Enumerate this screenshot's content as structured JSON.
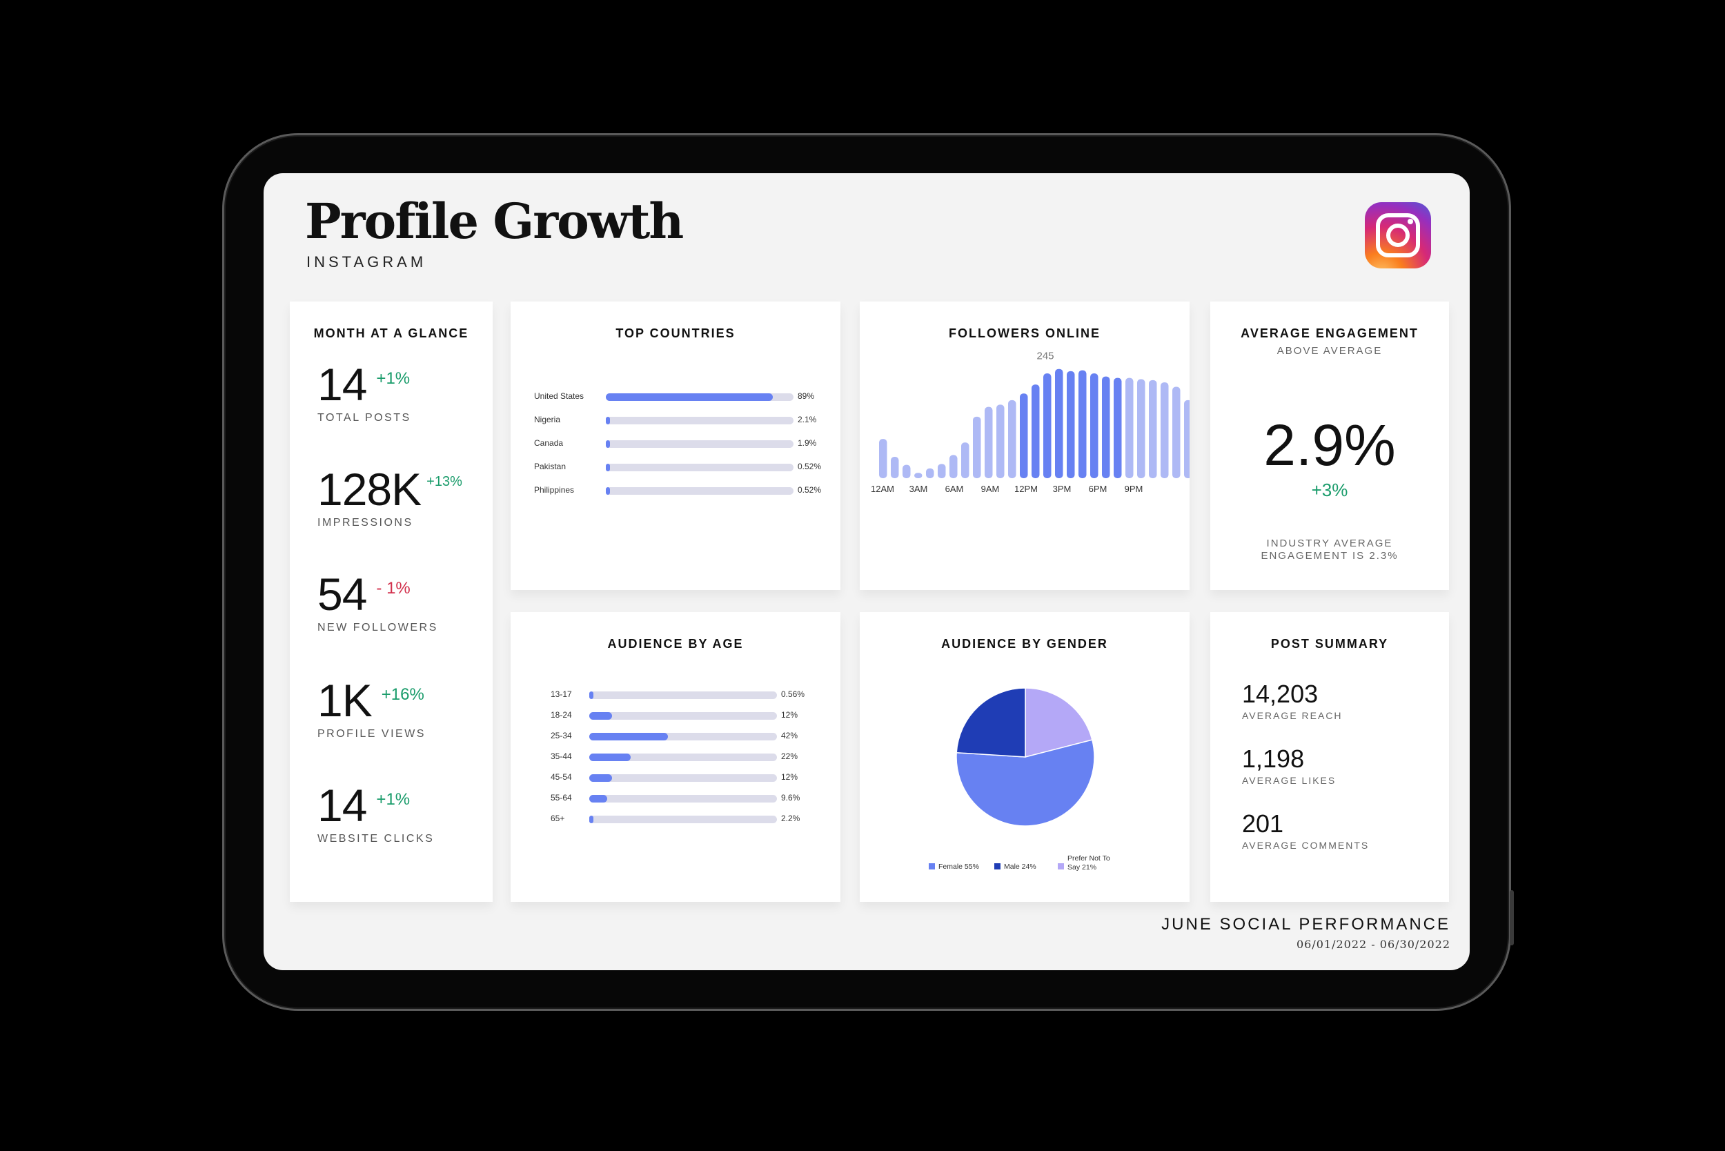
{
  "header": {
    "title": "Profile Growth",
    "subtitle": "INSTAGRAM",
    "logo_icon": "instagram-logo-icon"
  },
  "glance": {
    "title": "MONTH AT A GLANCE",
    "metrics": [
      {
        "value": "14",
        "change": "+1%",
        "label": "TOTAL POSTS",
        "trend": "pos"
      },
      {
        "value": "128K",
        "change": "+13%",
        "label": "IMPRESSIONS",
        "trend": "pos"
      },
      {
        "value": "54",
        "change": "- 1%",
        "label": "NEW FOLLOWERS",
        "trend": "neg"
      },
      {
        "value": "1K",
        "change": "+16%",
        "label": "PROFILE VIEWS",
        "trend": "pos"
      },
      {
        "value": "14",
        "change": "+1%",
        "label": "WEBSITE CLICKS",
        "trend": "pos"
      }
    ]
  },
  "countries": {
    "title": "TOP COUNTRIES",
    "rows": [
      {
        "label": "United States",
        "pct": "89%",
        "value": 89
      },
      {
        "label": "Nigeria",
        "pct": "2.1%",
        "value": 2.1
      },
      {
        "label": "Canada",
        "pct": "1.9%",
        "value": 1.9
      },
      {
        "label": "Pakistan",
        "pct": "0.52%",
        "value": 0.52
      },
      {
        "label": "Philippines",
        "pct": "0.52%",
        "value": 0.52
      }
    ]
  },
  "followers": {
    "title": "FOLLOWERS ONLINE",
    "peak_label": "245"
  },
  "engagement": {
    "title": "AVERAGE ENGAGEMENT",
    "subtitle": "ABOVE AVERAGE",
    "value": "2.9%",
    "change": "+3%",
    "note_line1": "INDUSTRY AVERAGE",
    "note_line2": "ENGAGEMENT IS 2.3%"
  },
  "age": {
    "title": "AUDIENCE BY AGE",
    "rows": [
      {
        "label": "13-17",
        "pct": "0.56%",
        "value": 0.56
      },
      {
        "label": "18-24",
        "pct": "12%",
        "value": 12
      },
      {
        "label": "25-34",
        "pct": "42%",
        "value": 42
      },
      {
        "label": "35-44",
        "pct": "22%",
        "value": 22
      },
      {
        "label": "45-54",
        "pct": "12%",
        "value": 12
      },
      {
        "label": "55-64",
        "pct": "9.6%",
        "value": 9.6
      },
      {
        "label": "65+",
        "pct": "2.2%",
        "value": 2.2
      }
    ]
  },
  "gender": {
    "title": "AUDIENCE BY GENDER"
  },
  "summary": {
    "title": "POST SUMMARY",
    "items": [
      {
        "value": "14,203",
        "label": "AVERAGE REACH"
      },
      {
        "value": "1,198",
        "label": "AVERAGE LIKES"
      },
      {
        "value": "201",
        "label": "AVERAGE COMMENTS"
      }
    ]
  },
  "footer": {
    "title": "JUNE SOCIAL PERFORMANCE",
    "range": "06/01/2022 - 06/30/2022"
  },
  "colors": {
    "accent": "#6781f2",
    "light": "#aeb9f5",
    "dark": "#1f3db5",
    "lavender": "#b4a8f7",
    "positive": "#1a9c6b",
    "negative": "#d2304c"
  },
  "chart_data": [
    {
      "type": "bar",
      "title": "FOLLOWERS ONLINE",
      "x_tick_labels": [
        "12AM",
        "3AM",
        "6AM",
        "9AM",
        "12PM",
        "3PM",
        "6PM",
        "9PM"
      ],
      "values": [
        88,
        48,
        30,
        12,
        22,
        32,
        52,
        80,
        138,
        160,
        165,
        175,
        190,
        210,
        235,
        245,
        240,
        242,
        235,
        228,
        225,
        225,
        222,
        220,
        215,
        205,
        175
      ],
      "highlight_from": 12,
      "highlight_to": 20,
      "annotation": "245",
      "ylim": [
        0,
        260
      ]
    },
    {
      "type": "pie",
      "title": "AUDIENCE BY GENDER",
      "slices": [
        {
          "label": "Female 55%",
          "value": 55,
          "color": "#6781f2"
        },
        {
          "label": "Male 24%",
          "value": 24,
          "color": "#1f3db5"
        },
        {
          "label": "Prefer Not To Say 21%",
          "value": 21,
          "color": "#b4a8f7"
        }
      ],
      "legend_label_1": "Female 55%",
      "legend_label_2": "Male 24%",
      "legend_label_3a": "Prefer Not To",
      "legend_label_3b": "Say 21%",
      "legend_position": "bottom"
    }
  ]
}
